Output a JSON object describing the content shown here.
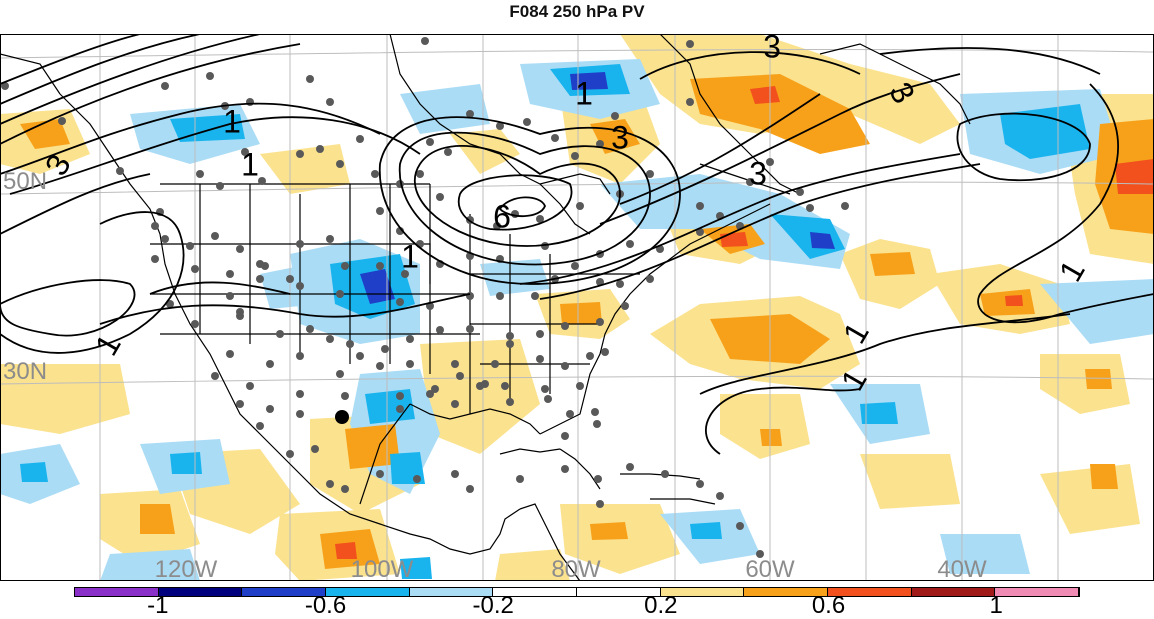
{
  "title": "F084 250 hPa PV",
  "lat_labels": [
    "50N",
    "30N"
  ],
  "lon_labels": [
    "120W",
    "100W",
    "80W",
    "60W",
    "40W"
  ],
  "contour_labels": [
    "3",
    "3",
    "1",
    "1",
    "6",
    "3",
    "1",
    "3",
    "3",
    "1",
    "1",
    "1",
    "1",
    "1"
  ],
  "colorbar": {
    "colors": [
      "#8b2fc9",
      "#00007f",
      "#1f3fc8",
      "#19b4ee",
      "#aadcf6",
      "#ffffff",
      "#ffffff",
      "#fbe28e",
      "#f7a11a",
      "#f2501c",
      "#a01a1a",
      "#f08cb4"
    ],
    "tick_labels": [
      "-1",
      "-0.6",
      "-0.2",
      "0.2",
      "0.6",
      "1"
    ]
  },
  "palette": {
    "neg_light": "#aadcf6",
    "neg_mid": "#19b4ee",
    "neg_strong": "#1f3fc8",
    "pos_light": "#fbe28e",
    "pos_mid": "#f7a11a",
    "pos_strong": "#f2501c",
    "station_dot": "#595959",
    "contour": "#000000",
    "grid": "#bdbdbd"
  }
}
